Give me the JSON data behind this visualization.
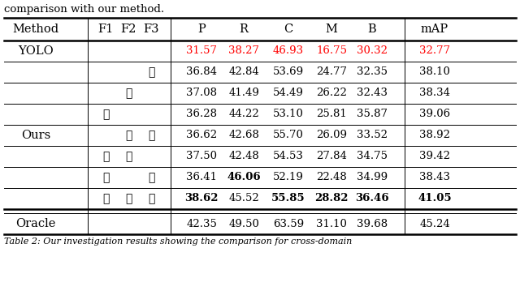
{
  "title_text": "comparison with our method.",
  "caption_text": "Table 2: Our investigation results showing the comparison for cross-domain",
  "col_headers": [
    "Method",
    "F1 F2 F3",
    "P",
    "R",
    "C",
    "M",
    "B",
    "mAP"
  ],
  "rows": [
    {
      "method": "YOLO",
      "f1": 0,
      "f2": 0,
      "f3": 0,
      "P": "31.57",
      "R": "38.27",
      "C": "46.93",
      "M": "16.75",
      "B": "30.32",
      "mAP": "32.77",
      "red": true,
      "bold_P": false,
      "bold_R": false,
      "bold_C": false,
      "bold_M": false,
      "bold_B": false,
      "bold_mAP": false
    },
    {
      "method": "Ours",
      "f1": 0,
      "f2": 0,
      "f3": 1,
      "P": "36.84",
      "R": "42.84",
      "C": "53.69",
      "M": "24.77",
      "B": "32.35",
      "mAP": "38.10",
      "red": false,
      "bold_P": false,
      "bold_R": false,
      "bold_C": false,
      "bold_M": false,
      "bold_B": false,
      "bold_mAP": false
    },
    {
      "method": "",
      "f1": 0,
      "f2": 1,
      "f3": 0,
      "P": "37.08",
      "R": "41.49",
      "C": "54.49",
      "M": "26.22",
      "B": "32.43",
      "mAP": "38.34",
      "red": false,
      "bold_P": false,
      "bold_R": false,
      "bold_C": false,
      "bold_M": false,
      "bold_B": false,
      "bold_mAP": false
    },
    {
      "method": "",
      "f1": 1,
      "f2": 0,
      "f3": 0,
      "P": "36.28",
      "R": "44.22",
      "C": "53.10",
      "M": "25.81",
      "B": "35.87",
      "mAP": "39.06",
      "red": false,
      "bold_P": false,
      "bold_R": false,
      "bold_C": false,
      "bold_M": false,
      "bold_B": false,
      "bold_mAP": false
    },
    {
      "method": "",
      "f1": 0,
      "f2": 1,
      "f3": 1,
      "P": "36.62",
      "R": "42.68",
      "C": "55.70",
      "M": "26.09",
      "B": "33.52",
      "mAP": "38.92",
      "red": false,
      "bold_P": false,
      "bold_R": false,
      "bold_C": false,
      "bold_M": false,
      "bold_B": false,
      "bold_mAP": false
    },
    {
      "method": "",
      "f1": 1,
      "f2": 1,
      "f3": 0,
      "P": "37.50",
      "R": "42.48",
      "C": "54.53",
      "M": "27.84",
      "B": "34.75",
      "mAP": "39.42",
      "red": false,
      "bold_P": false,
      "bold_R": false,
      "bold_C": false,
      "bold_M": false,
      "bold_B": false,
      "bold_mAP": false
    },
    {
      "method": "",
      "f1": 1,
      "f2": 0,
      "f3": 1,
      "P": "36.41",
      "R": "46.06",
      "C": "52.19",
      "M": "22.48",
      "B": "34.99",
      "mAP": "38.43",
      "red": false,
      "bold_P": false,
      "bold_R": true,
      "bold_C": false,
      "bold_M": false,
      "bold_B": false,
      "bold_mAP": false
    },
    {
      "method": "",
      "f1": 1,
      "f2": 1,
      "f3": 1,
      "P": "38.62",
      "R": "45.52",
      "C": "55.85",
      "M": "28.82",
      "B": "36.46",
      "mAP": "41.05",
      "red": false,
      "bold_P": true,
      "bold_R": false,
      "bold_C": true,
      "bold_M": true,
      "bold_B": true,
      "bold_mAP": true
    }
  ],
  "oracle": {
    "P": "42.35",
    "R": "49.50",
    "C": "63.59",
    "M": "31.10",
    "B": "39.68",
    "mAP": "45.24"
  },
  "check": "✓",
  "red_color": "#ff0000",
  "black_color": "#000000",
  "white_color": "#ffffff"
}
